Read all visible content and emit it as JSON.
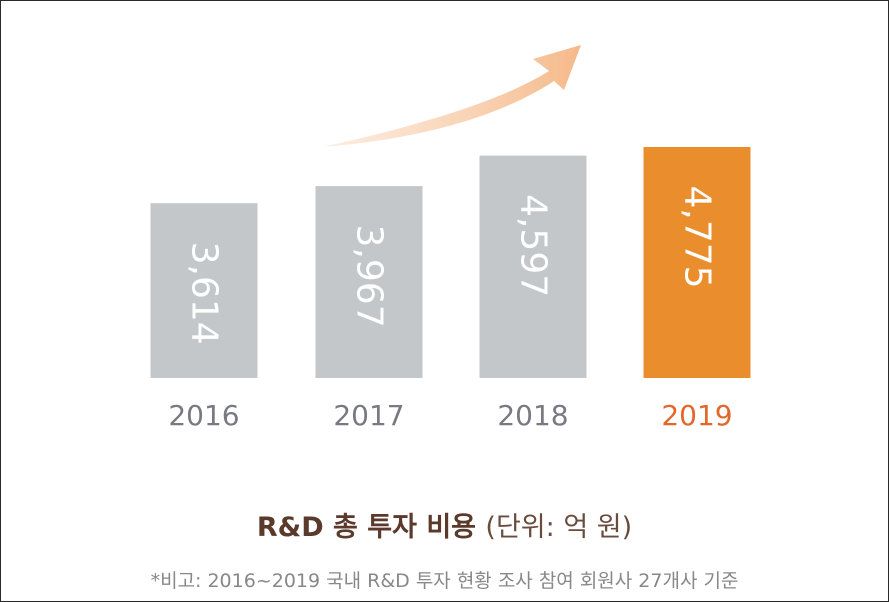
{
  "chart_data": {
    "type": "bar",
    "categories": [
      "2016",
      "2017",
      "2018",
      "2019"
    ],
    "values": [
      3614,
      3967,
      4597,
      4775
    ],
    "value_labels": [
      "3,614",
      "3,967",
      "4,597",
      "4,775"
    ],
    "highlight_index": 3,
    "title": "R&D 총 투자 비용",
    "unit": "(단위: 억 원)",
    "note": "*비고: 2016~2019 국내 R&D 투자 현황 조사 참여 회원사 27개사 기준",
    "colors": {
      "bar": "#c4c7ca",
      "highlight_bar": "#ea8d2c",
      "arrow": "#f6c7a0",
      "highlight_text": "#e4672a"
    }
  }
}
